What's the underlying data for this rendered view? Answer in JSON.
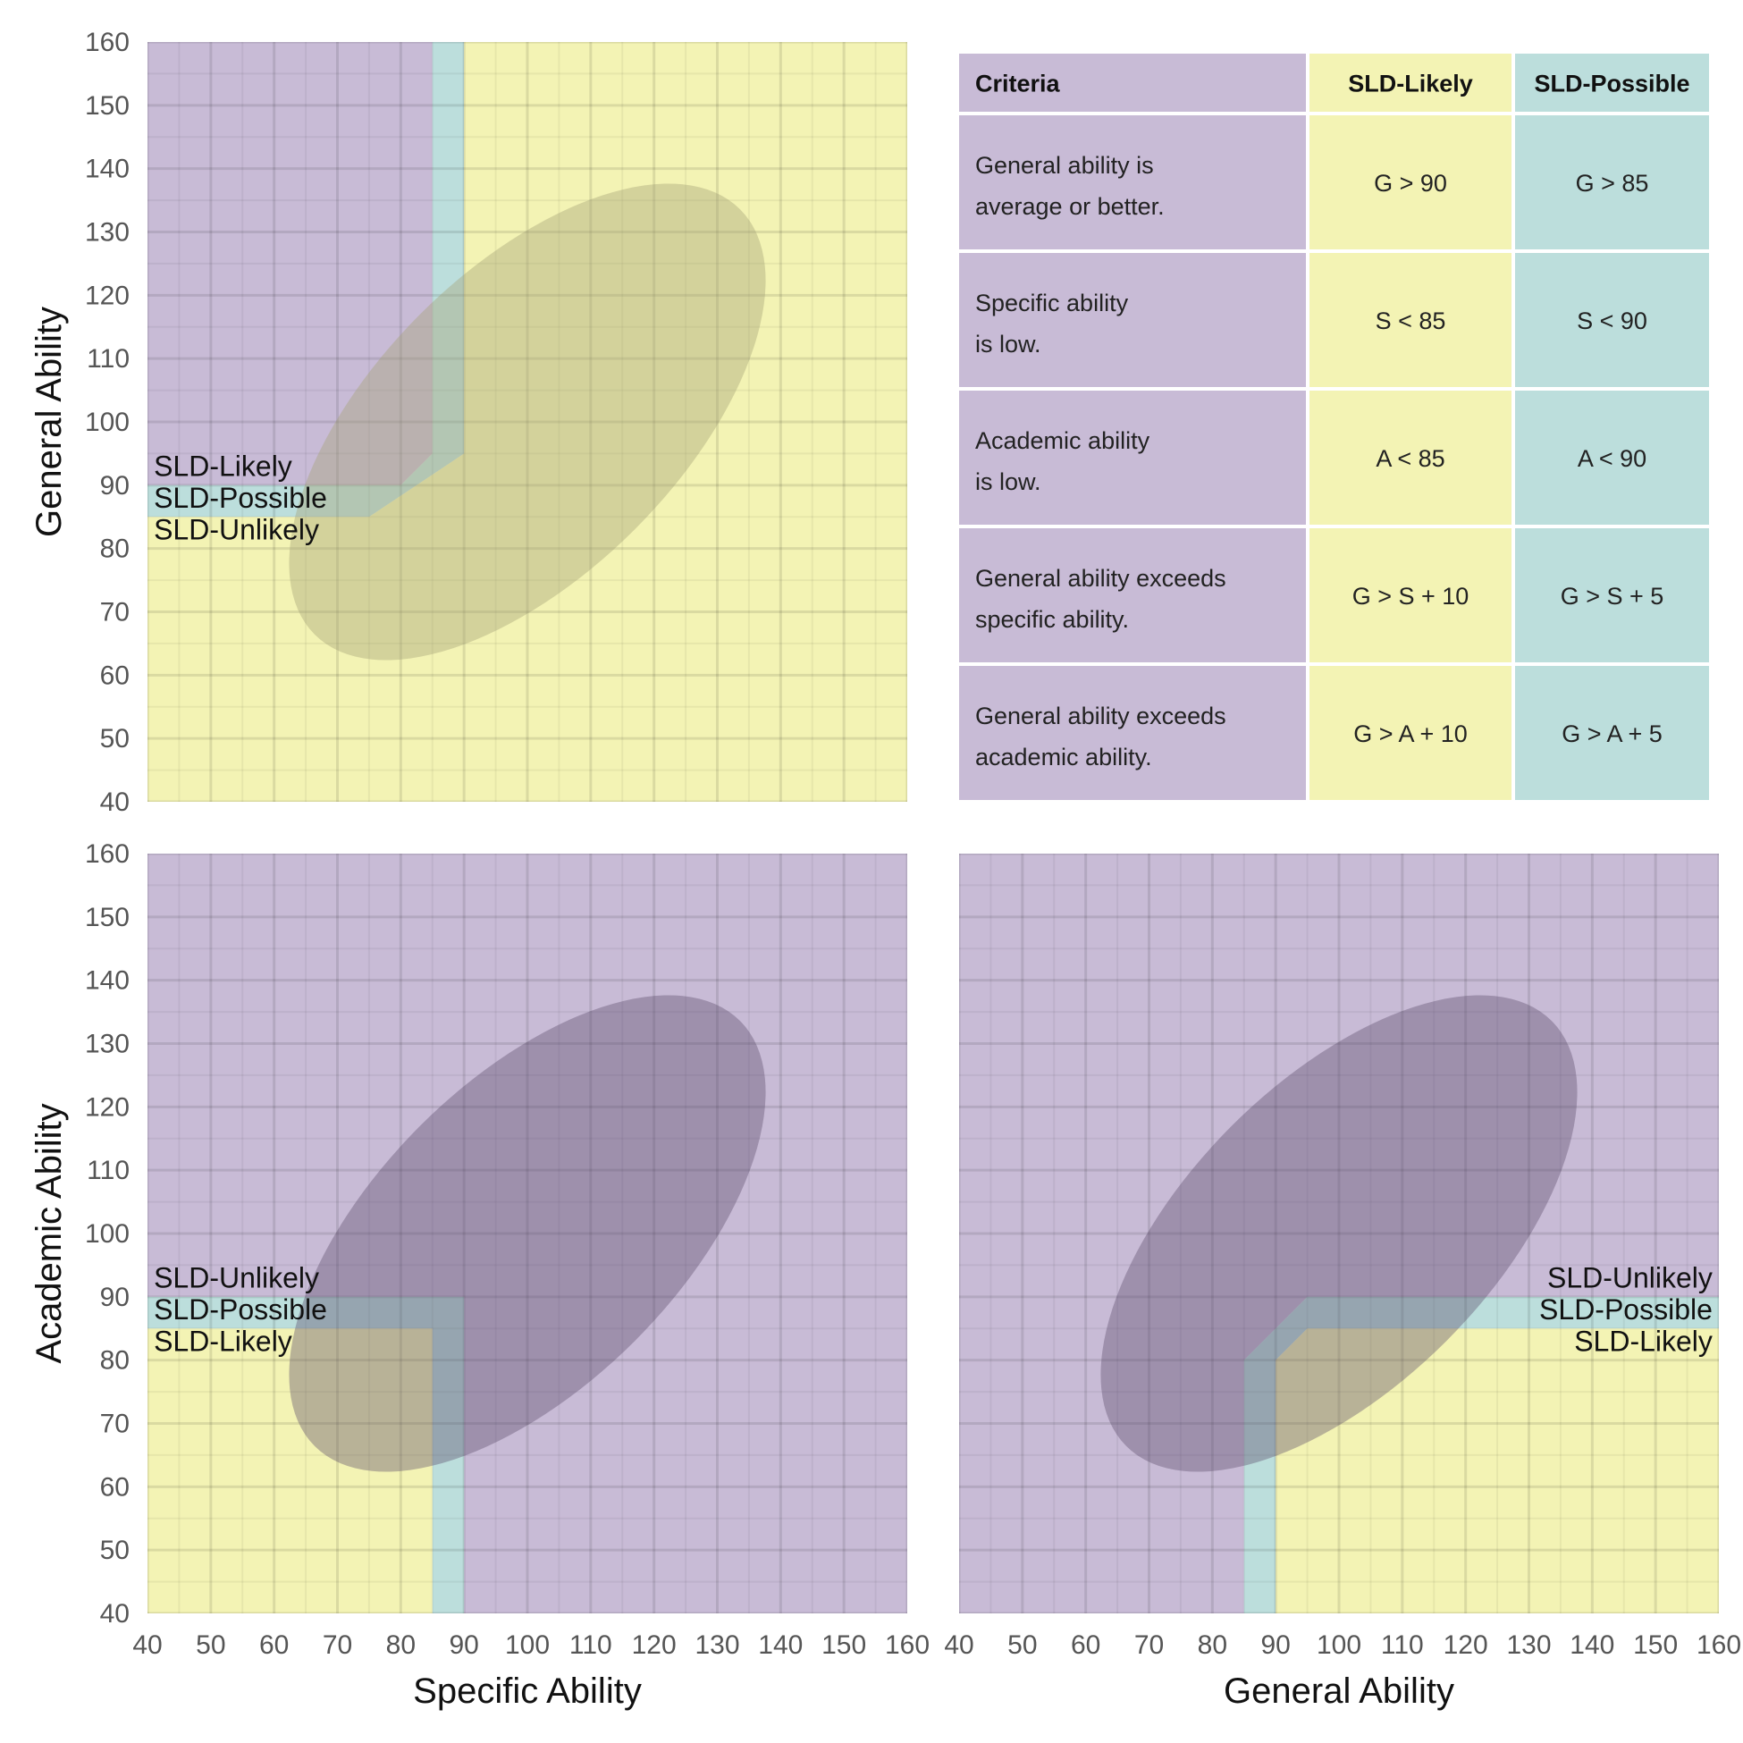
{
  "colors": {
    "likely": "#f3f3b4",
    "possible": "#bcdedc",
    "unlikely": "#c8bbd6",
    "ellipse_on_yellow": "#a8a47a",
    "ellipse_on_purple": "#5a4a6a",
    "grid": "#000000"
  },
  "chart_data": [
    {
      "type": "area",
      "id": "specific-vs-general",
      "xlabel": "",
      "ylabel": "General Ability",
      "xlim": [
        40,
        160
      ],
      "ylim": [
        40,
        160
      ],
      "x_ticks": [],
      "y_ticks": [
        "40",
        "50",
        "60",
        "70",
        "80",
        "90",
        "100",
        "110",
        "120",
        "130",
        "140",
        "150",
        "160"
      ],
      "grid": true,
      "regions": [
        {
          "name": "SLD-Unlikely",
          "color": "unlikely",
          "points": [
            [
              40,
              90
            ],
            [
              80,
              90
            ],
            [
              85,
              95
            ],
            [
              85,
              160
            ],
            [
              40,
              160
            ]
          ]
        },
        {
          "name": "SLD-Possible",
          "color": "possible",
          "points": [
            [
              40,
              85
            ],
            [
              75,
              85
            ],
            [
              90,
              95
            ],
            [
              90,
              160
            ],
            [
              85,
              160
            ],
            [
              85,
              95
            ],
            [
              80,
              90
            ],
            [
              40,
              90
            ]
          ]
        },
        {
          "name": "SLD-Likely",
          "color": "likely",
          "points": [
            [
              40,
              40
            ],
            [
              160,
              40
            ],
            [
              160,
              160
            ],
            [
              90,
              160
            ],
            [
              90,
              95
            ],
            [
              75,
              85
            ],
            [
              40,
              85
            ]
          ]
        }
      ],
      "ellipse": {
        "cx": 100,
        "cy": 100,
        "rx": 47.5,
        "ry": 24,
        "angle_deg": -45,
        "color": "ellipse_on_yellow",
        "opacity": 0.42
      },
      "labels": [
        {
          "text": "SLD-Likely",
          "x": 41,
          "y": 93
        },
        {
          "text": "SLD-Possible",
          "x": 41,
          "y": 88
        },
        {
          "text": "SLD-Unlikely",
          "x": 41,
          "y": 83
        }
      ]
    },
    {
      "type": "area",
      "id": "specific-vs-academic",
      "xlabel": "Specific Ability",
      "ylabel": "Academic Ability",
      "xlim": [
        40,
        160
      ],
      "ylim": [
        40,
        160
      ],
      "x_ticks": [
        "40",
        "50",
        "60",
        "70",
        "80",
        "90",
        "100",
        "110",
        "120",
        "130",
        "140",
        "150",
        "160"
      ],
      "y_ticks": [
        "40",
        "50",
        "60",
        "70",
        "80",
        "90",
        "100",
        "110",
        "120",
        "130",
        "140",
        "150",
        "160"
      ],
      "grid": true,
      "regions": [
        {
          "name": "SLD-Unlikely",
          "color": "unlikely",
          "points": [
            [
              40,
              90
            ],
            [
              90,
              90
            ],
            [
              90,
              40
            ],
            [
              160,
              40
            ],
            [
              160,
              160
            ],
            [
              40,
              160
            ]
          ]
        },
        {
          "name": "SLD-Possible",
          "color": "possible",
          "points": [
            [
              40,
              85
            ],
            [
              85,
              85
            ],
            [
              85,
              40
            ],
            [
              90,
              40
            ],
            [
              90,
              90
            ],
            [
              40,
              90
            ]
          ]
        },
        {
          "name": "SLD-Likely",
          "color": "likely",
          "points": [
            [
              40,
              40
            ],
            [
              85,
              40
            ],
            [
              85,
              85
            ],
            [
              40,
              85
            ]
          ]
        }
      ],
      "ellipse": {
        "cx": 100,
        "cy": 100,
        "rx": 47.5,
        "ry": 24,
        "angle_deg": -45,
        "color": "ellipse_on_purple",
        "opacity": 0.38
      },
      "labels": [
        {
          "text": "SLD-Unlikely",
          "x": 41,
          "y": 93
        },
        {
          "text": "SLD-Possible",
          "x": 41,
          "y": 88
        },
        {
          "text": "SLD-Likely",
          "x": 41,
          "y": 83
        }
      ]
    },
    {
      "type": "area",
      "id": "general-vs-academic",
      "xlabel": "General Ability",
      "ylabel": "",
      "xlim": [
        40,
        160
      ],
      "ylim": [
        40,
        160
      ],
      "x_ticks": [
        "40",
        "50",
        "60",
        "70",
        "80",
        "90",
        "100",
        "110",
        "120",
        "130",
        "140",
        "150",
        "160"
      ],
      "y_ticks": [],
      "grid": true,
      "regions": [
        {
          "name": "SLD-Unlikely",
          "color": "unlikely",
          "points": [
            [
              40,
              40
            ],
            [
              85,
              40
            ],
            [
              85,
              80
            ],
            [
              95,
              90
            ],
            [
              160,
              90
            ],
            [
              160,
              160
            ],
            [
              40,
              160
            ]
          ]
        },
        {
          "name": "SLD-Possible",
          "color": "possible",
          "points": [
            [
              85,
              40
            ],
            [
              90,
              40
            ],
            [
              90,
              80
            ],
            [
              95,
              85
            ],
            [
              160,
              85
            ],
            [
              160,
              90
            ],
            [
              95,
              90
            ],
            [
              85,
              80
            ]
          ]
        },
        {
          "name": "SLD-Likely",
          "color": "likely",
          "points": [
            [
              90,
              40
            ],
            [
              160,
              40
            ],
            [
              160,
              85
            ],
            [
              95,
              85
            ],
            [
              90,
              80
            ]
          ]
        }
      ],
      "ellipse": {
        "cx": 100,
        "cy": 100,
        "rx": 47.5,
        "ry": 24,
        "angle_deg": -45,
        "color": "ellipse_on_purple",
        "opacity": 0.38
      },
      "labels": [
        {
          "text": "SLD-Unlikely",
          "x": 159,
          "y": 93,
          "anchor": "end"
        },
        {
          "text": "SLD-Possible",
          "x": 159,
          "y": 88,
          "anchor": "end"
        },
        {
          "text": "SLD-Likely",
          "x": 159,
          "y": 83,
          "anchor": "end"
        }
      ]
    }
  ],
  "criteria_table": {
    "headers": [
      "Criteria",
      "SLD-Likely",
      "SLD-Possible"
    ],
    "rows": [
      {
        "criteria": [
          "General ability is",
          "average or better."
        ],
        "likely": "G > 90",
        "possible": "G > 85"
      },
      {
        "criteria": [
          "Specific ability",
          "is low."
        ],
        "likely": "S < 85",
        "possible": "S < 90"
      },
      {
        "criteria": [
          "Academic ability",
          "is low."
        ],
        "likely": "A < 85",
        "possible": "A < 90"
      },
      {
        "criteria": [
          "General ability exceeds",
          "specific ability."
        ],
        "likely": "G > S + 10",
        "possible": "G > S + 5"
      },
      {
        "criteria": [
          "General ability exceeds",
          "academic ability."
        ],
        "likely": "G > A + 10",
        "possible": "G > A + 5"
      }
    ]
  }
}
